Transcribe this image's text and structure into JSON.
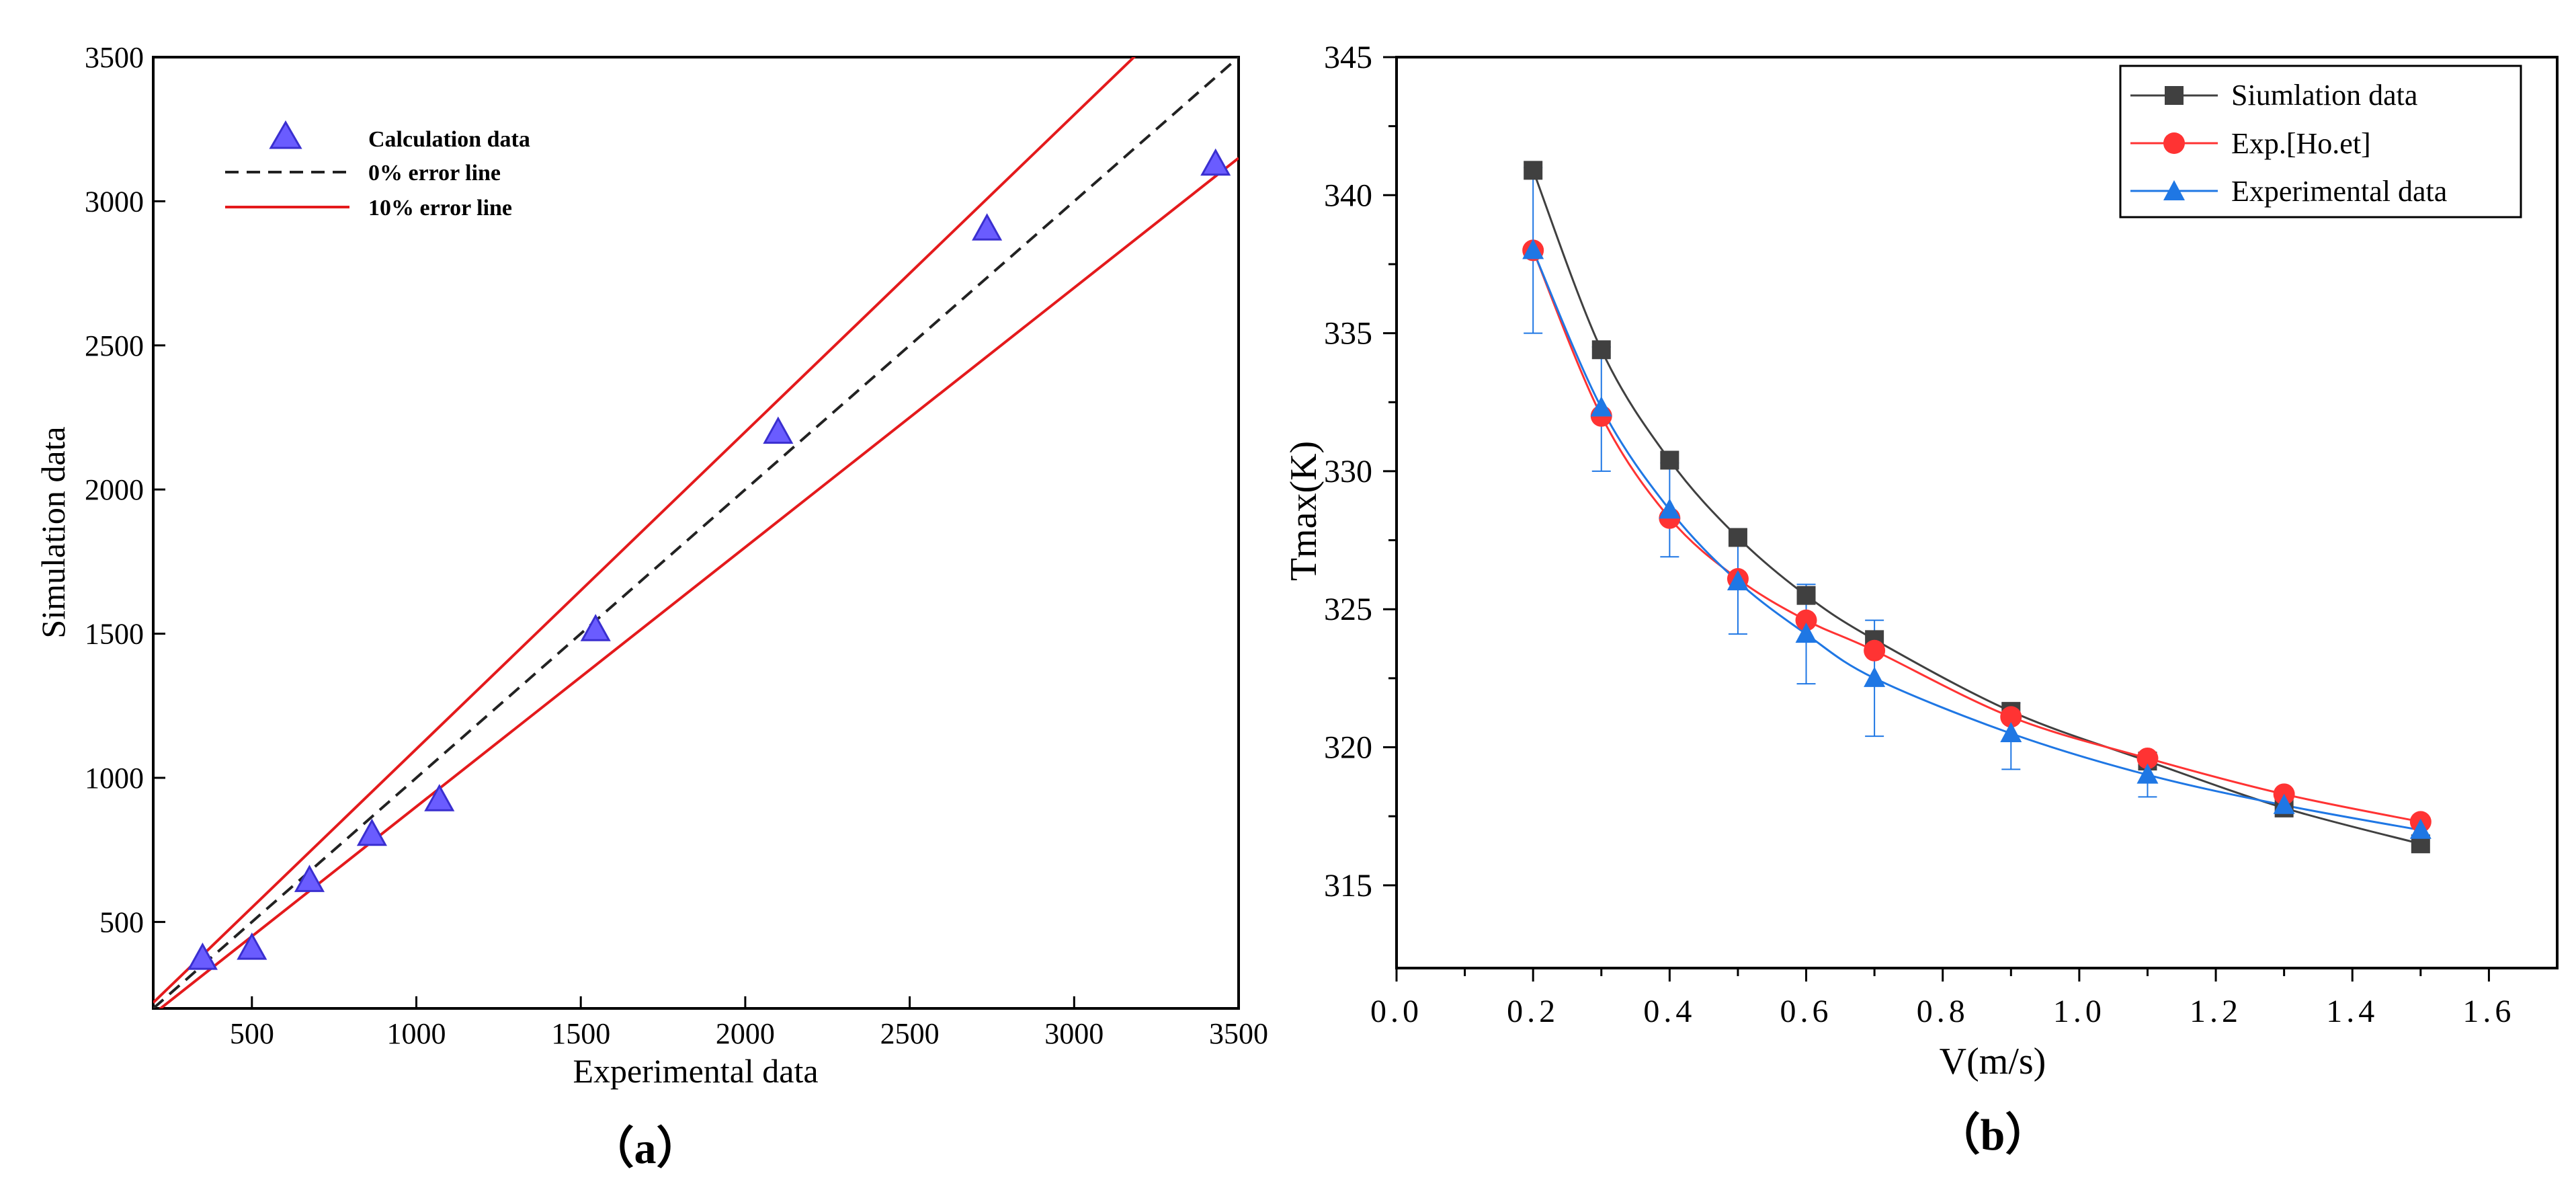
{
  "colors": {
    "triangle_fill": "#6a5cff",
    "triangle_stroke": "#3a2fd0",
    "error10_line": "#e41a1c",
    "zero_line": "#222222",
    "sim_series": "#404040",
    "exp_ho_series": "#ff3333",
    "exp_series": "#1f77e4"
  },
  "chart_data": [
    {
      "id": "a",
      "type": "scatter",
      "caption": "（a）",
      "xlabel": "Experimental data",
      "ylabel": "Simulation data",
      "xlim": [
        200,
        3500
      ],
      "ylim": [
        200,
        3500
      ],
      "xticks": [
        500,
        1000,
        1500,
        2000,
        2500,
        3000,
        3500
      ],
      "yticks": [
        500,
        1000,
        1500,
        2000,
        2500,
        3000,
        3500
      ],
      "grid": false,
      "legend_position": "top-left",
      "legend": {
        "calculation": "Calculation data",
        "zero_error": "0% error line",
        "ten_error": "10% error line"
      },
      "series": [
        {
          "name": "Calculation data",
          "points": [
            {
              "x": 350,
              "y": 370
            },
            {
              "x": 500,
              "y": 405
            },
            {
              "x": 675,
              "y": 640
            },
            {
              "x": 865,
              "y": 800
            },
            {
              "x": 1070,
              "y": 920
            },
            {
              "x": 1545,
              "y": 1510
            },
            {
              "x": 2100,
              "y": 2195
            },
            {
              "x": 2735,
              "y": 2900
            },
            {
              "x": 3430,
              "y": 3125
            }
          ]
        }
      ],
      "reference_lines": [
        {
          "name": "0% error line",
          "slope": 1.0
        },
        {
          "name": "10% error line (upper)",
          "slope": 1.1
        },
        {
          "name": "10% error line (lower)",
          "slope": 0.9
        }
      ]
    },
    {
      "id": "b",
      "type": "line",
      "caption": "（b）",
      "xlabel": "V(m/s)",
      "ylabel": "Tmax(K)",
      "xlim": [
        0.0,
        1.7
      ],
      "ylim": [
        312,
        345
      ],
      "xticks": [
        "0.0",
        "0.2",
        "0.4",
        "0.6",
        "0.8",
        "1.0",
        "1.2",
        "1.4",
        "1.6"
      ],
      "yticks": [
        315,
        320,
        325,
        330,
        335,
        340,
        345
      ],
      "grid": false,
      "legend_position": "top-right",
      "series": [
        {
          "name": "Siumlation data",
          "marker": "square",
          "x": [
            0.2,
            0.3,
            0.4,
            0.5,
            0.6,
            0.7,
            0.9,
            1.1,
            1.3,
            1.5
          ],
          "y": [
            340.9,
            334.4,
            330.4,
            327.6,
            325.5,
            323.9,
            321.3,
            319.5,
            317.8,
            316.5
          ]
        },
        {
          "name": "Exp.[Ho.et]",
          "marker": "circle",
          "x": [
            0.2,
            0.3,
            0.4,
            0.5,
            0.6,
            0.7,
            0.9,
            1.1,
            1.3,
            1.5
          ],
          "y": [
            338.0,
            332.0,
            328.3,
            326.1,
            324.6,
            323.5,
            321.1,
            319.6,
            318.3,
            317.3
          ]
        },
        {
          "name": "Experimental data",
          "marker": "triangle",
          "x": [
            0.2,
            0.3,
            0.4,
            0.5,
            0.6,
            0.7,
            0.9,
            1.1,
            1.3,
            1.5
          ],
          "y": [
            338.0,
            332.3,
            328.6,
            326.0,
            324.1,
            322.5,
            320.5,
            319.0,
            317.9,
            317.0
          ],
          "error_lo": [
            335.0,
            330.0,
            326.9,
            324.1,
            322.3,
            320.4,
            319.2,
            318.2,
            317.9,
            317.0
          ],
          "error_hi": [
            341.0,
            334.5,
            330.3,
            327.9,
            325.9,
            324.6,
            321.6,
            319.8,
            317.9,
            317.0
          ]
        }
      ]
    }
  ]
}
